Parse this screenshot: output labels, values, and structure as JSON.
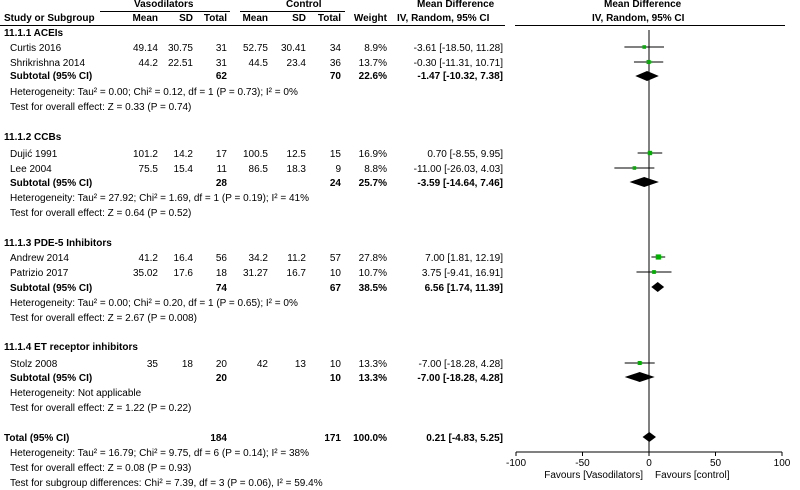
{
  "headers": {
    "group_vasodilators": "Vasodilators",
    "group_control": "Control",
    "study": "Study or Subgroup",
    "mean": "Mean",
    "sd": "SD",
    "total": "Total",
    "weight": "Weight",
    "md_title": "Mean Difference",
    "md_sub": "IV, Random, 95% CI",
    "plot_title": "Mean Difference",
    "plot_sub": "IV, Random, 95% CI"
  },
  "subgroups": [
    {
      "title": "11.1.1 ACEIs",
      "studies": [
        {
          "name": "Curtis 2016",
          "m1": "49.14",
          "sd1": "30.75",
          "n1": "31",
          "m2": "52.75",
          "sd2": "30.41",
          "n2": "34",
          "weight": "8.9%",
          "ci": "-3.61 [-18.50, 11.28]"
        },
        {
          "name": "Shrikrishna 2014",
          "m1": "44.2",
          "sd1": "22.51",
          "n1": "31",
          "m2": "44.5",
          "sd2": "23.4",
          "n2": "36",
          "weight": "13.7%",
          "ci": "-0.30 [-11.31, 10.71]"
        }
      ],
      "subtotal": {
        "label": "Subtotal (95% CI)",
        "n1": "62",
        "n2": "70",
        "weight": "22.6%",
        "ci": "-1.47 [-10.32, 7.38]"
      },
      "heterogeneity": "Heterogeneity: Tau² = 0.00; Chi² = 0.12, df = 1 (P = 0.73); I² = 0%",
      "overall": "Test for overall effect: Z = 0.33 (P = 0.74)"
    },
    {
      "title": "11.1.2 CCBs",
      "studies": [
        {
          "name": "Dujić 1991",
          "m1": "101.2",
          "sd1": "14.2",
          "n1": "17",
          "m2": "100.5",
          "sd2": "12.5",
          "n2": "15",
          "weight": "16.9%",
          "ci": "0.70 [-8.55, 9.95]"
        },
        {
          "name": "Lee 2004",
          "m1": "75.5",
          "sd1": "15.4",
          "n1": "11",
          "m2": "86.5",
          "sd2": "18.3",
          "n2": "9",
          "weight": "8.8%",
          "ci": "-11.00 [-26.03, 4.03]"
        }
      ],
      "subtotal": {
        "label": "Subtotal (95% CI)",
        "n1": "28",
        "n2": "24",
        "weight": "25.7%",
        "ci": "-3.59 [-14.64, 7.46]"
      },
      "heterogeneity": "Heterogeneity: Tau² = 27.92; Chi² = 1.69, df = 1 (P = 0.19); I² = 41%",
      "overall": "Test for overall effect: Z = 0.64 (P = 0.52)"
    },
    {
      "title": "11.1.3 PDE-5 Inhibitors",
      "studies": [
        {
          "name": "Andrew 2014",
          "m1": "41.2",
          "sd1": "16.4",
          "n1": "56",
          "m2": "34.2",
          "sd2": "11.2",
          "n2": "57",
          "weight": "27.8%",
          "ci": "7.00 [1.81, 12.19]"
        },
        {
          "name": "Patrizio 2017",
          "m1": "35.02",
          "sd1": "17.6",
          "n1": "18",
          "m2": "31.27",
          "sd2": "16.7",
          "n2": "10",
          "weight": "10.7%",
          "ci": "3.75 [-9.41, 16.91]"
        }
      ],
      "subtotal": {
        "label": "Subtotal (95% CI)",
        "n1": "74",
        "n2": "67",
        "weight": "38.5%",
        "ci": "6.56 [1.74, 11.39]"
      },
      "heterogeneity": "Heterogeneity: Tau² = 0.00; Chi² = 0.20, df = 1 (P = 0.65); I² = 0%",
      "overall": "Test for overall effect: Z = 2.67 (P = 0.008)"
    },
    {
      "title": "11.1.4 ET receptor inhibitors",
      "studies": [
        {
          "name": "Stolz 2008",
          "m1": "35",
          "sd1": "18",
          "n1": "20",
          "m2": "42",
          "sd2": "13",
          "n2": "10",
          "weight": "13.3%",
          "ci": "-7.00 [-18.28, 4.28]"
        }
      ],
      "subtotal": {
        "label": "Subtotal (95% CI)",
        "n1": "20",
        "n2": "10",
        "weight": "13.3%",
        "ci": "-7.00 [-18.28, 4.28]"
      },
      "heterogeneity": "Heterogeneity: Not applicable",
      "overall": "Test for overall effect: Z = 1.22 (P = 0.22)"
    }
  ],
  "total": {
    "label": "Total (95% CI)",
    "n1": "184",
    "n2": "171",
    "weight": "100.0%",
    "ci": "0.21 [-4.83, 5.25]",
    "heterogeneity": "Heterogeneity: Tau² = 16.79; Chi² = 9.75, df = 6 (P = 0.14); I² = 38%",
    "overall": "Test for overall effect: Z = 0.08 (P = 0.93)",
    "subgroup_diff": "Test for subgroup differences: Chi² = 7.39, df = 3 (P = 0.06), I² = 59.4%"
  },
  "chart_data": {
    "type": "scatter",
    "xlim": [
      -100,
      100
    ],
    "ticks": [
      "-100",
      "-50",
      "0",
      "50",
      "100"
    ],
    "tick_values": [
      -100,
      -50,
      0,
      50,
      100
    ],
    "favours_left": "Favours [Vasodilators]",
    "favours_right": "Favours [control]",
    "study_marker_color": "#00b000",
    "studies": [
      {
        "est": -3.61,
        "lo": -18.5,
        "hi": 11.28,
        "weight": 8.9
      },
      {
        "est": -0.3,
        "lo": -11.31,
        "hi": 10.71,
        "weight": 13.7
      },
      {
        "est": 0.7,
        "lo": -8.55,
        "hi": 9.95,
        "weight": 16.9
      },
      {
        "est": -11.0,
        "lo": -26.03,
        "hi": 4.03,
        "weight": 8.8
      },
      {
        "est": 7.0,
        "lo": 1.81,
        "hi": 12.19,
        "weight": 27.8
      },
      {
        "est": 3.75,
        "lo": -9.41,
        "hi": 16.91,
        "weight": 10.7
      },
      {
        "est": -7.0,
        "lo": -18.28,
        "hi": 4.28,
        "weight": 13.3
      }
    ],
    "diamonds": [
      {
        "est": -1.47,
        "lo": -10.32,
        "hi": 7.38
      },
      {
        "est": -3.59,
        "lo": -14.64,
        "hi": 7.46
      },
      {
        "est": 6.56,
        "lo": 1.74,
        "hi": 11.39
      },
      {
        "est": -7.0,
        "lo": -18.28,
        "hi": 4.28
      },
      {
        "est": 0.21,
        "lo": -4.83,
        "hi": 5.25
      }
    ]
  }
}
